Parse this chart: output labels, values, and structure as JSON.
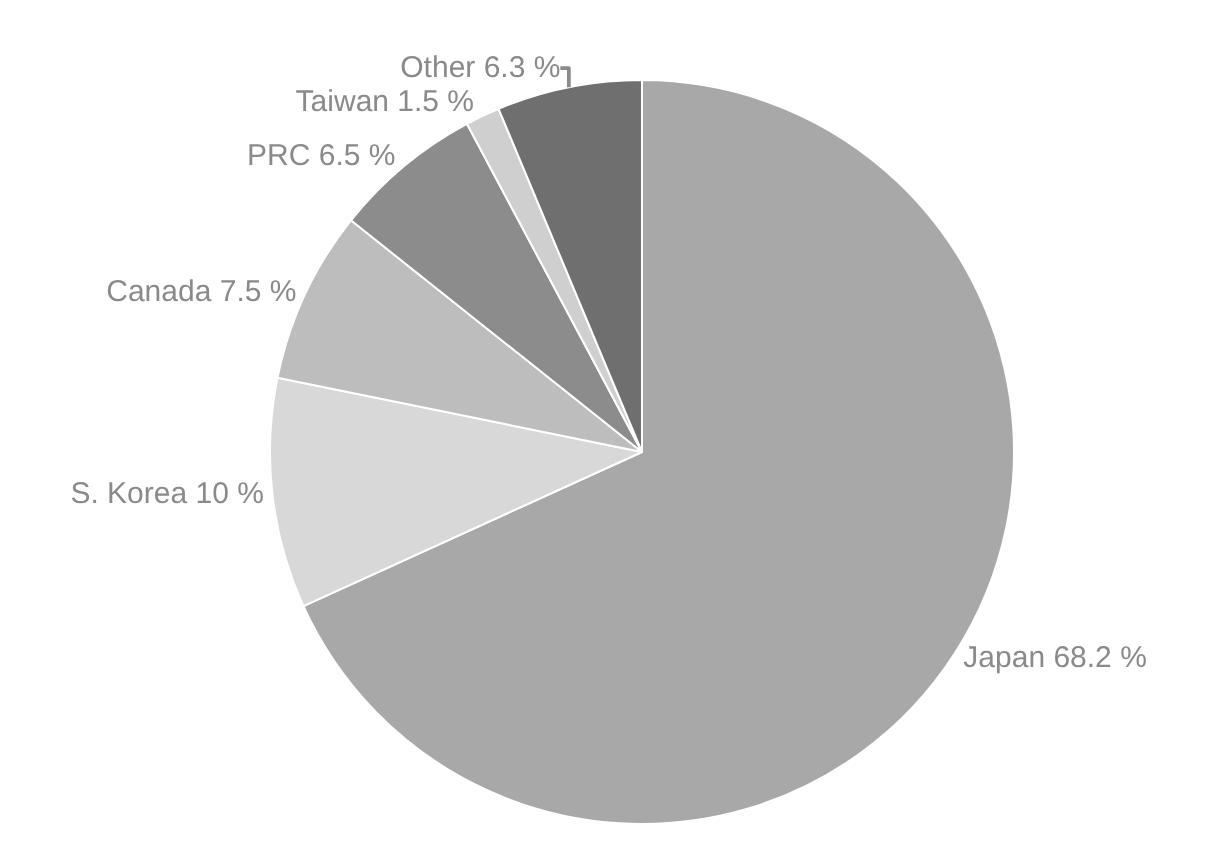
{
  "chart_data": {
    "type": "pie",
    "categories": [
      "Japan",
      "S. Korea",
      "Canada",
      "PRC",
      "Taiwan",
      "Other"
    ],
    "values": [
      68.2,
      10,
      7.5,
      6.5,
      1.5,
      6.3
    ],
    "value_labels": [
      "68.2 %",
      "10 %",
      "7.5 %",
      "6.5 %",
      "1.5 %",
      "6.3 %"
    ],
    "colors": [
      "#a8a8a8",
      "#d8d8d8",
      "#bdbdbd",
      "#8c8c8c",
      "#cfcfcf",
      "#6f6f6f"
    ],
    "legend": false
  }
}
